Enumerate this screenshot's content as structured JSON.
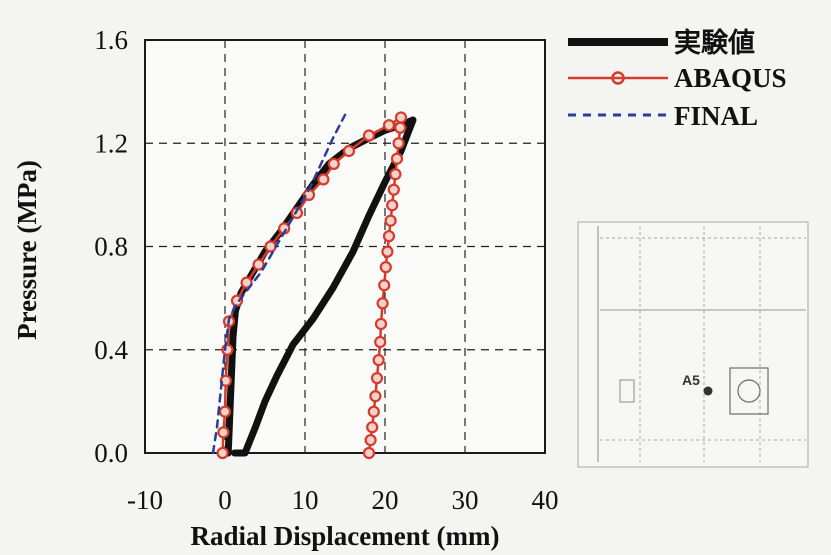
{
  "chart_data": {
    "type": "line",
    "xlabel": "Radial Displacement (mm)",
    "ylabel": "Pressure (MPa)",
    "xlim": [
      -10,
      40
    ],
    "ylim": [
      0.0,
      1.6
    ],
    "x_ticks": [
      "-10",
      "0",
      "10",
      "20",
      "30",
      "40"
    ],
    "y_ticks": [
      "0.0",
      "0.4",
      "0.8",
      "1.2",
      "1.6"
    ],
    "grid": true,
    "legend_position": "top-right",
    "series": [
      {
        "name": "実験値",
        "color": "#111111",
        "style": "solid-thick",
        "x": [
          0.4,
          0.6,
          0.8,
          1.0,
          1.3,
          2.0,
          3.5,
          5.0,
          7.0,
          9.0,
          11.0,
          13.0,
          15.5,
          18.0,
          20.0,
          22.0,
          23.5,
          22.0,
          20.0,
          18.0,
          16.0,
          13.5,
          11.0,
          8.5,
          6.5,
          5.0,
          3.8,
          2.5,
          1.2
        ],
        "y": [
          0.0,
          0.15,
          0.3,
          0.45,
          0.55,
          0.62,
          0.7,
          0.78,
          0.86,
          0.95,
          1.04,
          1.12,
          1.18,
          1.22,
          1.25,
          1.27,
          1.29,
          1.17,
          1.05,
          0.92,
          0.78,
          0.64,
          0.52,
          0.42,
          0.3,
          0.2,
          0.1,
          0.0,
          0.0
        ]
      },
      {
        "name": "ABAQUS",
        "color": "#d63a2a",
        "style": "line-circle",
        "x": [
          -0.3,
          -0.2,
          0.0,
          0.1,
          0.3,
          0.5,
          1.5,
          2.7,
          4.2,
          5.7,
          7.4,
          9.0,
          10.5,
          12.3,
          13.6,
          15.5,
          18.0,
          20.5,
          22.0,
          21.9,
          21.7,
          21.5,
          21.3,
          21.1,
          20.9,
          20.7,
          20.5,
          20.3,
          20.1,
          19.9,
          19.7,
          19.5,
          19.4,
          19.2,
          19.0,
          18.8,
          18.6,
          18.4,
          18.2,
          18.0
        ],
        "y": [
          0.0,
          0.08,
          0.16,
          0.28,
          0.4,
          0.51,
          0.59,
          0.66,
          0.73,
          0.8,
          0.87,
          0.93,
          1.0,
          1.06,
          1.12,
          1.17,
          1.23,
          1.27,
          1.3,
          1.26,
          1.2,
          1.14,
          1.08,
          1.02,
          0.96,
          0.9,
          0.84,
          0.78,
          0.72,
          0.65,
          0.58,
          0.5,
          0.43,
          0.36,
          0.29,
          0.22,
          0.16,
          0.1,
          0.05,
          0.0
        ]
      },
      {
        "name": "FINAL",
        "color": "#2a3d9a",
        "style": "dashed",
        "x": [
          -1.5,
          -1.0,
          -0.5,
          0.0,
          0.5,
          1.5,
          3.0,
          4.5,
          6.0,
          7.5,
          9.0,
          10.5,
          12.0,
          13.5,
          15.0
        ],
        "y": [
          0.0,
          0.1,
          0.25,
          0.4,
          0.52,
          0.58,
          0.64,
          0.7,
          0.78,
          0.86,
          0.94,
          1.02,
          1.12,
          1.22,
          1.31
        ]
      }
    ]
  },
  "inset": {
    "point_label": "A5"
  }
}
